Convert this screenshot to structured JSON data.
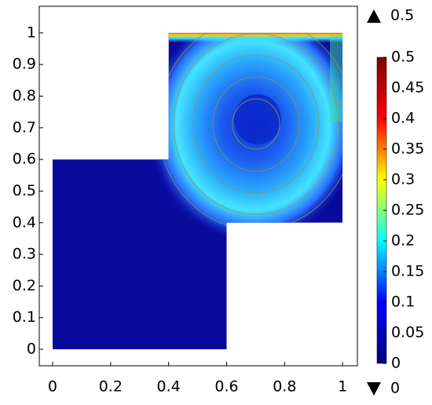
{
  "chart_data": {
    "type": "surface",
    "domain": {
      "x": [
        0,
        0.6,
        0.6,
        1,
        1,
        0.4,
        0.4,
        0
      ],
      "y": [
        0,
        0,
        0.4,
        0.4,
        1,
        1,
        0.6,
        0.6
      ]
    },
    "xlim": [
      -0.046,
      1.051
    ],
    "xticks": [
      0,
      0.2,
      0.4,
      0.6,
      0.8,
      1
    ],
    "ylim": [
      -0.052,
      1.084
    ],
    "yticks": [
      0,
      0.1,
      0.2,
      0.3,
      0.4,
      0.5,
      0.6,
      0.7,
      0.8,
      0.9,
      1
    ],
    "clim": [
      0,
      0.5
    ],
    "cticks": [
      0,
      0.05,
      0.1,
      0.15,
      0.2,
      0.25,
      0.3,
      0.35,
      0.4,
      0.45,
      0.5
    ],
    "colormap": [
      "#00007f",
      "#0000ff",
      "#00ffff",
      "#ffff00",
      "#ff0000",
      "#7f0000"
    ],
    "max": 0.5,
    "min": 0
  }
}
